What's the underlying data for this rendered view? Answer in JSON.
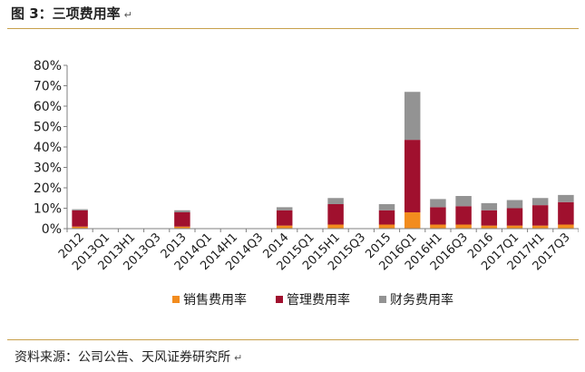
{
  "figure": {
    "title": "图 3：三项费用率",
    "source": "资料来源：公司公告、天风证券研究所",
    "return_mark": "↵"
  },
  "chart_data": {
    "type": "bar",
    "stacked": true,
    "categories": [
      "2012",
      "2013Q1",
      "2013H1",
      "2013Q3",
      "2013",
      "2014Q1",
      "2014H1",
      "2014Q3",
      "2014",
      "2015Q1",
      "2015H1",
      "2015Q3",
      "2015",
      "2016Q1",
      "2016H1",
      "2016Q3",
      "2016",
      "2017Q1",
      "2017H1",
      "2017Q3"
    ],
    "series": [
      {
        "name": "销售费用率",
        "color": "#f28c1e",
        "values": [
          1.0,
          0,
          0,
          0,
          1.0,
          0,
          0,
          0,
          1.5,
          0,
          2.0,
          0,
          2.0,
          8.0,
          2.0,
          2.0,
          1.5,
          1.5,
          1.5,
          2.0
        ]
      },
      {
        "name": "管理费用率",
        "color": "#a0102e",
        "values": [
          8.0,
          0,
          0,
          0,
          7.0,
          0,
          0,
          0,
          7.5,
          0,
          10.0,
          0,
          7.0,
          35.5,
          8.5,
          9.0,
          7.5,
          8.5,
          10.0,
          11.0
        ]
      },
      {
        "name": "财务费用率",
        "color": "#939393",
        "values": [
          0.5,
          0,
          0,
          0,
          1.0,
          0,
          0,
          0,
          1.5,
          0,
          3.0,
          0,
          3.0,
          23.5,
          4.0,
          5.0,
          3.5,
          4.0,
          3.5,
          3.5
        ]
      }
    ],
    "title": "",
    "xlabel": "",
    "ylabel": "",
    "ylim": [
      0,
      80
    ],
    "yticks": [
      "0%",
      "10%",
      "20%",
      "30%",
      "40%",
      "50%",
      "60%",
      "70%",
      "80%"
    ],
    "grid": false,
    "legend_position": "bottom"
  }
}
